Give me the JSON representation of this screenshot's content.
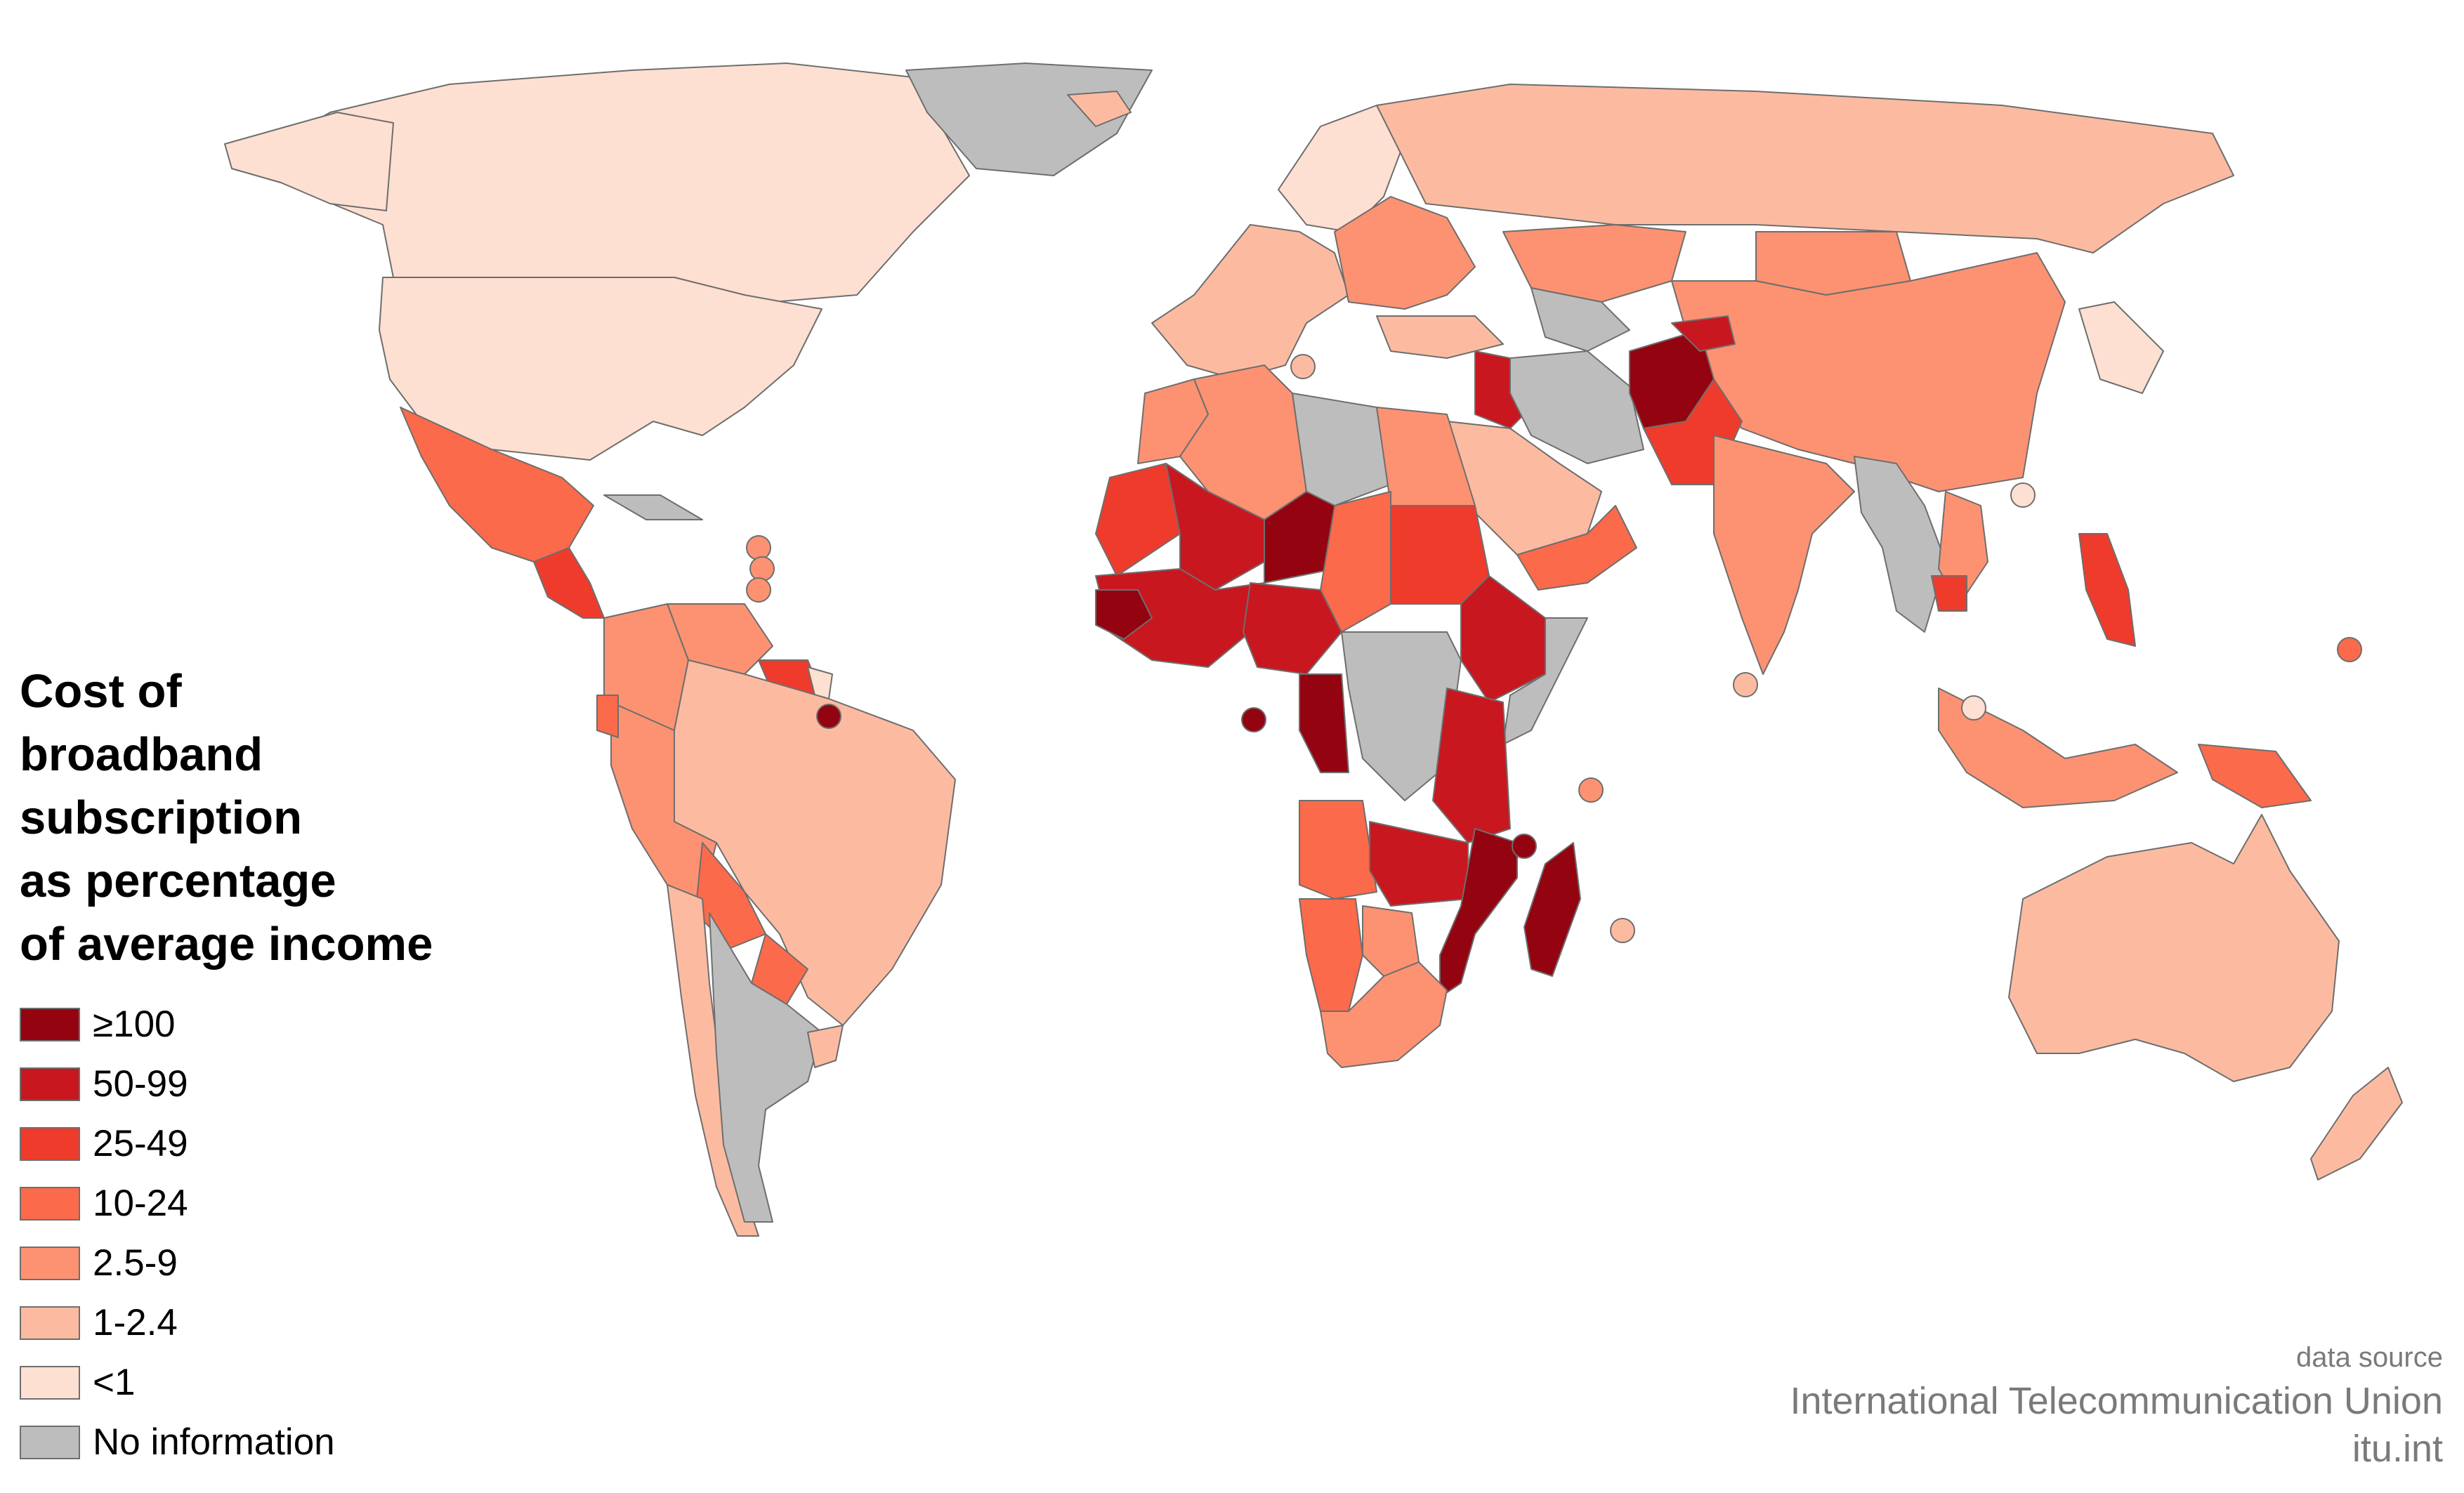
{
  "legend": {
    "title_lines": [
      "Cost of",
      "broadband",
      "subscription",
      "as percentage",
      "of average income"
    ],
    "items": [
      {
        "label": "≥100",
        "color": "#930410"
      },
      {
        "label": "50-99",
        "color": "#c8171f"
      },
      {
        "label": "25-49",
        "color": "#ef3b2c"
      },
      {
        "label": "10-24",
        "color": "#fb6a4a"
      },
      {
        "label": "2.5-9",
        "color": "#fc9272"
      },
      {
        "label": "1-2.4",
        "color": "#fcbba1"
      },
      {
        "label": "<1",
        "color": "#fee0d2"
      },
      {
        "label": "No information",
        "color": "#bdbdbd"
      }
    ]
  },
  "source": {
    "caption": "data source",
    "organization": "International Telecommunication Union",
    "url": "itu.int"
  },
  "regions": [
    {
      "name": "canada",
      "category": "<1"
    },
    {
      "name": "usa",
      "category": "<1"
    },
    {
      "name": "alaska",
      "category": "<1"
    },
    {
      "name": "greenland",
      "category": "No information"
    },
    {
      "name": "mexico",
      "category": "10-24"
    },
    {
      "name": "central-america",
      "category": "25-49"
    },
    {
      "name": "cuba",
      "category": "No information"
    },
    {
      "name": "venezuela",
      "category": "2.5-9"
    },
    {
      "name": "colombia",
      "category": "2.5-9"
    },
    {
      "name": "guyanas",
      "category": "25-49"
    },
    {
      "name": "french-guiana",
      "category": "<1"
    },
    {
      "name": "brazil",
      "category": "1-2.4"
    },
    {
      "name": "peru",
      "category": "2.5-9"
    },
    {
      "name": "ecuador",
      "category": "10-24"
    },
    {
      "name": "bolivia",
      "category": "10-24"
    },
    {
      "name": "paraguay",
      "category": "10-24"
    },
    {
      "name": "chile",
      "category": "1-2.4"
    },
    {
      "name": "argentina",
      "category": "No information"
    },
    {
      "name": "uruguay",
      "category": "1-2.4"
    },
    {
      "name": "iceland",
      "category": "1-2.4"
    },
    {
      "name": "western-europe",
      "category": "1-2.4"
    },
    {
      "name": "scandinavia",
      "category": "<1"
    },
    {
      "name": "eastern-europe",
      "category": "2.5-9"
    },
    {
      "name": "russia",
      "category": "1-2.4"
    },
    {
      "name": "kazakhstan",
      "category": "2.5-9"
    },
    {
      "name": "central-asia",
      "category": "No information"
    },
    {
      "name": "mongolia",
      "category": "2.5-9"
    },
    {
      "name": "china",
      "category": "2.5-9"
    },
    {
      "name": "korea-japan",
      "category": "<1"
    },
    {
      "name": "turkey",
      "category": "1-2.4"
    },
    {
      "name": "iraq",
      "category": "50-99"
    },
    {
      "name": "iran",
      "category": "No information"
    },
    {
      "name": "arabia",
      "category": "1-2.4"
    },
    {
      "name": "yemen-oman",
      "category": "10-24"
    },
    {
      "name": "afghanistan",
      "category": "≥100"
    },
    {
      "name": "tajikistan",
      "category": "50-99"
    },
    {
      "name": "pakistan",
      "category": "25-49"
    },
    {
      "name": "india",
      "category": "2.5-9"
    },
    {
      "name": "myanmar-thailand",
      "category": "No information"
    },
    {
      "name": "vietnam",
      "category": "2.5-9"
    },
    {
      "name": "cambodia",
      "category": "25-49"
    },
    {
      "name": "philippines",
      "category": "25-49"
    },
    {
      "name": "indonesia",
      "category": "2.5-9"
    },
    {
      "name": "papua",
      "category": "10-24"
    },
    {
      "name": "australia",
      "category": "1-2.4"
    },
    {
      "name": "new-zealand",
      "category": "1-2.4"
    },
    {
      "name": "morocco",
      "category": "2.5-9"
    },
    {
      "name": "algeria",
      "category": "2.5-9"
    },
    {
      "name": "libya",
      "category": "No information"
    },
    {
      "name": "egypt",
      "category": "2.5-9"
    },
    {
      "name": "mauritania",
      "category": "25-49"
    },
    {
      "name": "mali",
      "category": "50-99"
    },
    {
      "name": "niger",
      "category": "≥100"
    },
    {
      "name": "chad",
      "category": "10-24"
    },
    {
      "name": "sudan",
      "category": "25-49"
    },
    {
      "name": "west-africa",
      "category": "50-99"
    },
    {
      "name": "guinea",
      "category": "≥100"
    },
    {
      "name": "nigeria",
      "category": "50-99"
    },
    {
      "name": "ethiopia",
      "category": "50-99"
    },
    {
      "name": "somalia",
      "category": "No information"
    },
    {
      "name": "central-africa",
      "category": "No information"
    },
    {
      "name": "congo",
      "category": "≥100"
    },
    {
      "name": "east-africa",
      "category": "50-99"
    },
    {
      "name": "angola",
      "category": "10-24"
    },
    {
      "name": "zambia",
      "category": "50-99"
    },
    {
      "name": "mozambique",
      "category": "≥100"
    },
    {
      "name": "namibia",
      "category": "10-24"
    },
    {
      "name": "botswana",
      "category": "2.5-9"
    },
    {
      "name": "south-africa",
      "category": "2.5-9"
    },
    {
      "name": "madagascar",
      "category": "≥100"
    }
  ],
  "markers": [
    {
      "name": "caribbean-dot",
      "category": "2.5-9"
    },
    {
      "name": "caribbean-dot",
      "category": "2.5-9"
    },
    {
      "name": "caribbean-dot",
      "category": "2.5-9"
    },
    {
      "name": "suriname-dot",
      "category": "≥100"
    },
    {
      "name": "sao-tome-dot",
      "category": "≥100"
    },
    {
      "name": "comoros-dot",
      "category": "≥100"
    },
    {
      "name": "seychelles-dot",
      "category": "2.5-9"
    },
    {
      "name": "mauritius-dot",
      "category": "1-2.4"
    },
    {
      "name": "maldives-dot",
      "category": "1-2.4"
    },
    {
      "name": "malta-dot",
      "category": "1-2.4"
    },
    {
      "name": "hong-kong-dot",
      "category": "<1"
    },
    {
      "name": "singapore-dot",
      "category": "<1"
    },
    {
      "name": "micronesia-dot",
      "category": "10-24"
    }
  ]
}
